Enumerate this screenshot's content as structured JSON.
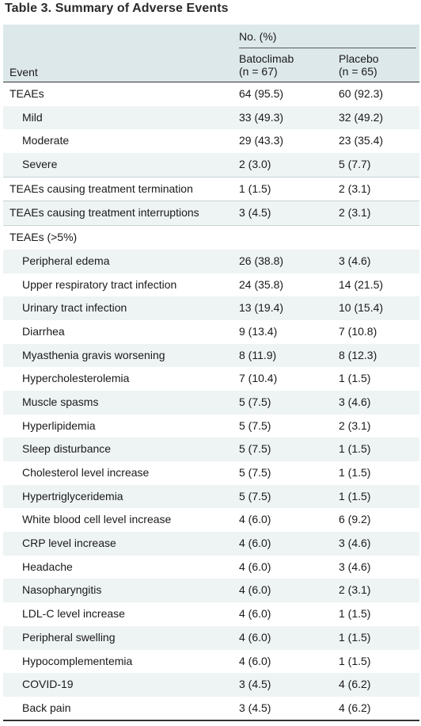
{
  "title": "Table 3. Summary of Adverse Events",
  "header": {
    "group_label": "No. (%)",
    "event_label": "Event",
    "col1_line1": "Batoclimab",
    "col1_line2": "(n = 67)",
    "col2_line1": "Placebo",
    "col2_line2": "(n = 65)"
  },
  "rows": [
    {
      "label": "TEAEs",
      "bat": "64 (95.5)",
      "pla": "60 (92.3)"
    },
    {
      "label": "Mild",
      "bat": "33 (49.3)",
      "pla": "32 (49.2)"
    },
    {
      "label": "Moderate",
      "bat": "29 (43.3)",
      "pla": "23 (35.4)"
    },
    {
      "label": "Severe",
      "bat": "2 (3.0)",
      "pla": "5 (7.7)"
    },
    {
      "label": "TEAEs causing treatment termination",
      "bat": "1 (1.5)",
      "pla": "2 (3.1)"
    },
    {
      "label": "TEAEs causing treatment interruptions",
      "bat": "3 (4.5)",
      "pla": "2 (3.1)"
    },
    {
      "label": "TEAEs (>5%)",
      "bat": "",
      "pla": ""
    },
    {
      "label": "Peripheral edema",
      "bat": "26 (38.8)",
      "pla": "3 (4.6)"
    },
    {
      "label": "Upper respiratory tract infection",
      "bat": "24 (35.8)",
      "pla": "14 (21.5)"
    },
    {
      "label": "Urinary tract infection",
      "bat": "13 (19.4)",
      "pla": "10 (15.4)"
    },
    {
      "label": "Diarrhea",
      "bat": "9 (13.4)",
      "pla": "7 (10.8)"
    },
    {
      "label": "Myasthenia gravis worsening",
      "bat": "8 (11.9)",
      "pla": "8 (12.3)"
    },
    {
      "label": "Hypercholesterolemia",
      "bat": "7 (10.4)",
      "pla": "1 (1.5)"
    },
    {
      "label": "Muscle spasms",
      "bat": "5 (7.5)",
      "pla": "3 (4.6)"
    },
    {
      "label": "Hyperlipidemia",
      "bat": "5 (7.5)",
      "pla": "2 (3.1)"
    },
    {
      "label": "Sleep disturbance",
      "bat": "5 (7.5)",
      "pla": "1 (1.5)"
    },
    {
      "label": "Cholesterol level increase",
      "bat": "5 (7.5)",
      "pla": "1 (1.5)"
    },
    {
      "label": "Hypertriglyceridemia",
      "bat": "5 (7.5)",
      "pla": "1 (1.5)"
    },
    {
      "label": "White blood cell level increase",
      "bat": "4 (6.0)",
      "pla": "6 (9.2)"
    },
    {
      "label": "CRP level increase",
      "bat": "4 (6.0)",
      "pla": "3 (4.6)"
    },
    {
      "label": "Headache",
      "bat": "4 (6.0)",
      "pla": "3 (4.6)"
    },
    {
      "label": "Nasopharyngitis",
      "bat": "4 (6.0)",
      "pla": "2 (3.1)"
    },
    {
      "label": "LDL-C level increase",
      "bat": "4 (6.0)",
      "pla": "1 (1.5)"
    },
    {
      "label": "Peripheral swelling",
      "bat": "4 (6.0)",
      "pla": "1 (1.5)"
    },
    {
      "label": "Hypocomplementemia",
      "bat": "4 (6.0)",
      "pla": "1 (1.5)"
    },
    {
      "label": "COVID-19",
      "bat": "3 (4.5)",
      "pla": "4 (6.2)"
    },
    {
      "label": "Back pain",
      "bat": "3 (4.5)",
      "pla": "4 (6.2)"
    }
  ]
}
